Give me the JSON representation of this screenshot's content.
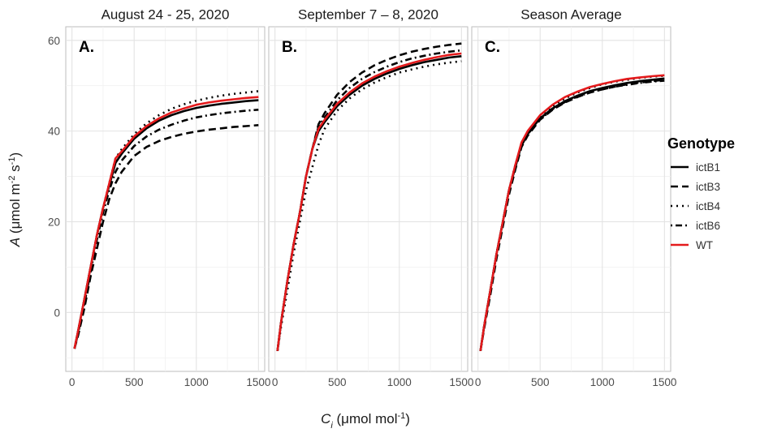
{
  "figure": {
    "y_axis_title": {
      "symbol": "A",
      "pre": " (μmol m",
      "sup1": "-2",
      "mid": " s",
      "sup2": "-1",
      "post": ")"
    },
    "x_axis_title": {
      "symbol": "C",
      "sub": "i",
      "pre": " (μmol mol",
      "sup": "-1",
      "post": ")"
    },
    "legend": {
      "title": "Genotype",
      "items": [
        {
          "label": "ictB1",
          "color": "#000000",
          "dash": "solid"
        },
        {
          "label": "ictB3",
          "color": "#000000",
          "dash": "dashed"
        },
        {
          "label": "ictB4",
          "color": "#000000",
          "dash": "dotted"
        },
        {
          "label": "ictB6",
          "color": "#000000",
          "dash": "dotdash"
        },
        {
          "label": "WT",
          "color": "#e41a1c",
          "dash": "solid"
        }
      ]
    }
  },
  "chart_data": [
    {
      "type": "line",
      "title": "August 24 - 25, 2020",
      "panel_label": "A.",
      "xlabel": "Ci (μmol mol-1)",
      "ylabel": "A (μmol m-2 s-1)",
      "xlim": [
        -50,
        1550
      ],
      "ylim": [
        -13,
        63
      ],
      "xticks": [
        0,
        500,
        1000,
        1500
      ],
      "yticks": [
        0,
        20,
        40,
        60
      ],
      "grid": true,
      "legend": "right",
      "series": [
        {
          "name": "ictB1",
          "x": [
            20,
            50,
            100,
            150,
            200,
            250,
            300,
            350,
            400,
            500,
            600,
            700,
            800,
            900,
            1000,
            1100,
            1200,
            1300,
            1400,
            1500
          ],
          "y": [
            -8,
            -4,
            3,
            10,
            17,
            23,
            28,
            33,
            35,
            38.3,
            40.6,
            42.3,
            43.5,
            44.4,
            45.1,
            45.6,
            46,
            46.3,
            46.6,
            46.8
          ]
        },
        {
          "name": "ictB3",
          "x": [
            20,
            50,
            100,
            150,
            200,
            250,
            300,
            350,
            400,
            500,
            600,
            700,
            800,
            900,
            1000,
            1100,
            1200,
            1300,
            1400,
            1500
          ],
          "y": [
            -8,
            -5,
            1,
            8,
            14,
            20,
            25,
            28.5,
            31,
            34.5,
            36.5,
            37.8,
            38.7,
            39.4,
            39.9,
            40.3,
            40.6,
            40.9,
            41.1,
            41.3
          ]
        },
        {
          "name": "ictB4",
          "x": [
            20,
            50,
            100,
            150,
            200,
            250,
            300,
            350,
            400,
            500,
            600,
            700,
            800,
            900,
            1000,
            1100,
            1200,
            1300,
            1400,
            1500
          ],
          "y": [
            -8,
            -4,
            3,
            10,
            17,
            23,
            28.5,
            34,
            36,
            39.3,
            41.7,
            43.5,
            44.9,
            45.9,
            46.7,
            47.3,
            47.8,
            48.2,
            48.5,
            48.8
          ]
        },
        {
          "name": "ictB6",
          "x": [
            20,
            50,
            100,
            150,
            200,
            250,
            300,
            350,
            400,
            500,
            600,
            700,
            800,
            900,
            1000,
            1100,
            1200,
            1300,
            1400,
            1500
          ],
          "y": [
            -8,
            -4.5,
            2,
            9,
            16,
            22,
            27,
            31,
            33.5,
            36.7,
            38.8,
            40.3,
            41.4,
            42.3,
            43,
            43.5,
            43.9,
            44.2,
            44.5,
            44.7
          ]
        },
        {
          "name": "WT",
          "x": [
            20,
            50,
            100,
            150,
            200,
            250,
            300,
            350,
            400,
            500,
            600,
            700,
            800,
            900,
            1000,
            1100,
            1200,
            1300,
            1400,
            1500
          ],
          "y": [
            -8,
            -4,
            3,
            10,
            17,
            23,
            28.5,
            34,
            35.5,
            38.8,
            41.1,
            42.8,
            44.1,
            45,
            45.8,
            46.3,
            46.7,
            47,
            47.3,
            47.5
          ]
        }
      ]
    },
    {
      "type": "line",
      "title": "September 7 – 8, 2020",
      "panel_label": "B.",
      "xlabel": "Ci (μmol mol-1)",
      "ylabel": "A (μmol m-2 s-1)",
      "xlim": [
        -50,
        1550
      ],
      "ylim": [
        -13,
        63
      ],
      "xticks": [
        0,
        500,
        1000,
        1500
      ],
      "yticks": [
        0,
        20,
        40,
        60
      ],
      "grid": true,
      "legend": "right",
      "series": [
        {
          "name": "ictB1",
          "x": [
            20,
            50,
            100,
            150,
            200,
            250,
            300,
            350,
            400,
            500,
            600,
            700,
            800,
            900,
            1000,
            1100,
            1200,
            1300,
            1400,
            1500
          ],
          "y": [
            -8.5,
            -2,
            7,
            15,
            22,
            30,
            36,
            40,
            42,
            45.5,
            48,
            50,
            51.5,
            52.7,
            53.7,
            54.5,
            55.2,
            55.7,
            56.2,
            56.5
          ]
        },
        {
          "name": "ictB3",
          "x": [
            20,
            50,
            100,
            150,
            200,
            250,
            300,
            350,
            400,
            500,
            600,
            700,
            800,
            900,
            1000,
            1100,
            1200,
            1300,
            1400,
            1500
          ],
          "y": [
            -8.5,
            -2,
            7,
            15,
            22,
            30,
            36,
            41.5,
            44,
            48,
            50.8,
            52.9,
            54.5,
            55.7,
            56.7,
            57.5,
            58.1,
            58.6,
            59,
            59.3
          ]
        },
        {
          "name": "ictB4",
          "x": [
            20,
            50,
            100,
            150,
            200,
            250,
            300,
            350,
            400,
            500,
            600,
            700,
            800,
            900,
            1000,
            1100,
            1200,
            1300,
            1400,
            1500
          ],
          "y": [
            -8.5,
            -3,
            5,
            13,
            20,
            27,
            32,
            37,
            40.5,
            44.5,
            47.2,
            49.2,
            50.7,
            51.9,
            52.9,
            53.6,
            54.2,
            54.7,
            55.1,
            55.4
          ]
        },
        {
          "name": "ictB6",
          "x": [
            20,
            50,
            100,
            150,
            200,
            250,
            300,
            350,
            400,
            500,
            600,
            700,
            800,
            900,
            1000,
            1100,
            1200,
            1300,
            1400,
            1500
          ],
          "y": [
            -8.5,
            -2,
            7,
            15,
            22,
            30,
            36,
            41,
            43,
            46.8,
            49.5,
            51.5,
            53,
            54.2,
            55.2,
            56,
            56.6,
            57.1,
            57.5,
            57.8
          ]
        },
        {
          "name": "WT",
          "x": [
            20,
            50,
            100,
            150,
            200,
            250,
            300,
            350,
            400,
            500,
            600,
            700,
            800,
            900,
            1000,
            1100,
            1200,
            1300,
            1400,
            1500
          ],
          "y": [
            -8.5,
            -2,
            7,
            15,
            22,
            30,
            36,
            40.5,
            42.5,
            46,
            48.5,
            50.5,
            52,
            53.2,
            54.2,
            55,
            55.7,
            56.3,
            56.8,
            57.1
          ]
        }
      ]
    },
    {
      "type": "line",
      "title": "Season Average",
      "panel_label": "C.",
      "xlabel": "Ci (μmol mol-1)",
      "ylabel": "A (μmol m-2 s-1)",
      "xlim": [
        -50,
        1550
      ],
      "ylim": [
        -13,
        63
      ],
      "xticks": [
        0,
        500,
        1000,
        1500
      ],
      "yticks": [
        0,
        20,
        40,
        60
      ],
      "grid": true,
      "legend": "right",
      "series": [
        {
          "name": "ictB1",
          "x": [
            20,
            50,
            100,
            150,
            200,
            250,
            300,
            350,
            400,
            500,
            600,
            700,
            800,
            900,
            1000,
            1100,
            1200,
            1300,
            1400,
            1500
          ],
          "y": [
            -8.5,
            -3,
            5,
            13,
            20,
            27,
            32,
            37,
            39.5,
            42.8,
            45,
            46.6,
            47.8,
            48.8,
            49.5,
            50.1,
            50.6,
            51,
            51.3,
            51.6
          ]
        },
        {
          "name": "ictB3",
          "x": [
            20,
            50,
            100,
            150,
            200,
            250,
            300,
            350,
            400,
            500,
            600,
            700,
            800,
            900,
            1000,
            1100,
            1200,
            1300,
            1400,
            1500
          ],
          "y": [
            -8.5,
            -3.5,
            4,
            12,
            19,
            26,
            31.5,
            36.5,
            39,
            42.5,
            44.7,
            46.3,
            47.5,
            48.5,
            49.2,
            49.8,
            50.3,
            50.7,
            51,
            51.3
          ]
        },
        {
          "name": "ictB4",
          "x": [
            20,
            50,
            100,
            150,
            200,
            250,
            300,
            350,
            400,
            500,
            600,
            700,
            800,
            900,
            1000,
            1100,
            1200,
            1300,
            1400,
            1500
          ],
          "y": [
            -8.5,
            -3,
            5,
            13,
            20,
            27,
            32.5,
            37,
            39.8,
            43.2,
            45.5,
            47.2,
            48.5,
            49.5,
            50.3,
            50.9,
            51.3,
            51.7,
            52,
            52.2
          ]
        },
        {
          "name": "ictB6",
          "x": [
            20,
            50,
            100,
            150,
            200,
            250,
            300,
            350,
            400,
            500,
            600,
            700,
            800,
            900,
            1000,
            1100,
            1200,
            1300,
            1400,
            1500
          ],
          "y": [
            -8.5,
            -3,
            5,
            13,
            20,
            27,
            32,
            36.8,
            39.3,
            42.6,
            44.8,
            46.4,
            47.6,
            48.5,
            49.2,
            49.8,
            50.2,
            50.6,
            50.9,
            51.1
          ]
        },
        {
          "name": "WT",
          "x": [
            20,
            50,
            100,
            150,
            200,
            250,
            300,
            350,
            400,
            500,
            600,
            700,
            800,
            900,
            1000,
            1100,
            1200,
            1300,
            1400,
            1500
          ],
          "y": [
            -8.5,
            -3,
            5,
            13,
            20,
            27,
            32.5,
            37.5,
            40,
            43.5,
            45.8,
            47.5,
            48.7,
            49.7,
            50.4,
            51,
            51.5,
            51.8,
            52.1,
            52.3
          ]
        }
      ]
    }
  ]
}
